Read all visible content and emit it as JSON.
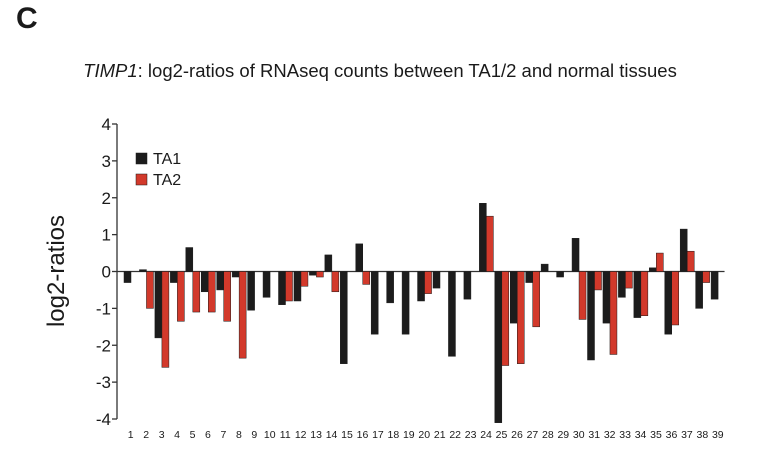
{
  "panel_label": "C",
  "title": {
    "gene": "TIMP1",
    "rest": ": log2-ratios of RNAseq counts between TA1/2 and normal tissues"
  },
  "colors": {
    "TA1": "#1c1c1c",
    "TA2": "#d2392b",
    "axis": "#333333"
  },
  "chart_data": {
    "type": "bar",
    "title": "TIMP1: log2-ratios of RNAseq counts between TA1/2 and normal tissues",
    "xlabel": "",
    "ylabel": "log2-ratios",
    "ylim": [
      -4,
      4
    ],
    "yticks": [
      4,
      3,
      2,
      1,
      0,
      -1,
      -2,
      -3,
      -4
    ],
    "grid": false,
    "legend_position": "top-left",
    "categories": [
      "1",
      "2",
      "3",
      "4",
      "5",
      "6",
      "7",
      "8",
      "9",
      "10",
      "11",
      "12",
      "13",
      "14",
      "15",
      "16",
      "17",
      "18",
      "19",
      "20",
      "21",
      "22",
      "23",
      "24",
      "25",
      "26",
      "27",
      "28",
      "29",
      "30",
      "31",
      "32",
      "33",
      "34",
      "35",
      "36",
      "37",
      "38",
      "39"
    ],
    "series": [
      {
        "name": "TA1",
        "values": [
          -0.3,
          0.05,
          -1.8,
          -0.3,
          0.65,
          -0.55,
          -0.5,
          -0.15,
          -1.05,
          -0.7,
          -0.9,
          -0.8,
          -0.1,
          0.45,
          -2.5,
          0.75,
          -1.7,
          -0.85,
          -1.7,
          -0.8,
          -0.45,
          -2.3,
          -0.75,
          1.85,
          -4.1,
          -1.4,
          -0.3,
          0.2,
          -0.15,
          0.9,
          -2.4,
          -1.4,
          -0.7,
          -1.25,
          0.1,
          -1.7,
          1.15,
          -1.0,
          -0.75
        ]
      },
      {
        "name": "TA2",
        "values": [
          null,
          -1.0,
          -2.6,
          -1.35,
          -1.1,
          -1.1,
          -1.35,
          -2.35,
          null,
          null,
          -0.8,
          -0.4,
          -0.15,
          -0.55,
          null,
          -0.35,
          null,
          null,
          null,
          -0.6,
          null,
          null,
          null,
          1.5,
          -2.55,
          -2.5,
          -1.5,
          null,
          null,
          -1.3,
          -0.5,
          -2.25,
          -0.45,
          -1.2,
          0.5,
          -1.45,
          0.55,
          -0.3,
          null
        ]
      }
    ]
  }
}
